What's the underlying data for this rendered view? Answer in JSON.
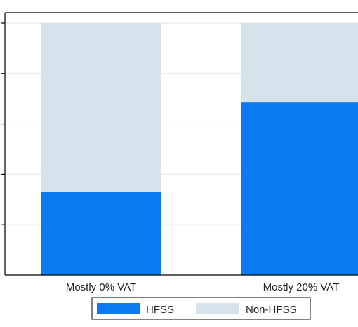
{
  "chart_data": {
    "type": "bar",
    "stacked": true,
    "normalized": true,
    "categories": [
      "Mostly 0% VAT",
      "Mostly 20% VAT"
    ],
    "series": [
      {
        "name": "HFSS",
        "values": [
          0.33,
          0.685
        ],
        "color": "#0a7bf2"
      },
      {
        "name": "Non-HFSS",
        "values": [
          0.67,
          0.315
        ],
        "color": "#d6e3ea"
      }
    ],
    "ylim": [
      0,
      1.0
    ],
    "grid": true,
    "legend_position": "bottom-center",
    "title": "",
    "xlabel": "",
    "ylabel": ""
  }
}
